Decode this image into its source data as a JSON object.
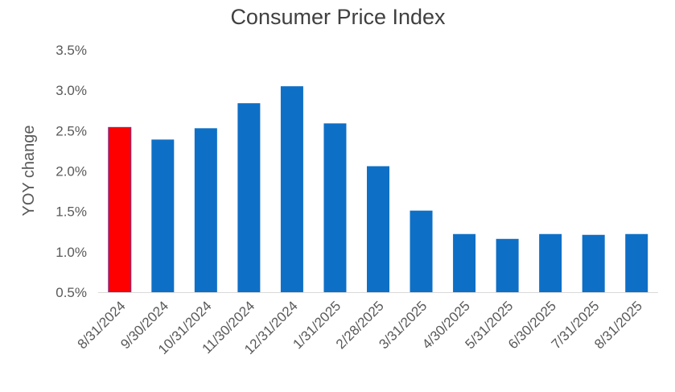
{
  "chart_data": {
    "type": "bar",
    "title": "Consumer Price Index",
    "xlabel": "",
    "ylabel": "YOY change",
    "ylim": [
      0.5,
      3.5
    ],
    "yticks": [
      "0.5%",
      "1.0%",
      "1.5%",
      "2.0%",
      "2.5%",
      "3.0%",
      "3.5%"
    ],
    "ytick_values": [
      0.5,
      1.0,
      1.5,
      2.0,
      2.5,
      3.0,
      3.5
    ],
    "grid": false,
    "categories": [
      "8/31/2024",
      "9/30/2024",
      "10/31/2024",
      "11/30/2024",
      "12/31/2024",
      "1/31/2025",
      "2/28/2025",
      "3/31/2025",
      "4/30/2025",
      "5/31/2025",
      "6/30/2025",
      "7/31/2025",
      "8/31/2025"
    ],
    "values": [
      2.54,
      2.39,
      2.53,
      2.84,
      3.05,
      2.59,
      2.06,
      1.51,
      1.22,
      1.16,
      1.22,
      1.21,
      1.22
    ],
    "colors": {
      "default": "#0E6FC6",
      "highlight": "#FF0000",
      "axis": "#D9D9D9"
    },
    "highlight_index": 0
  }
}
